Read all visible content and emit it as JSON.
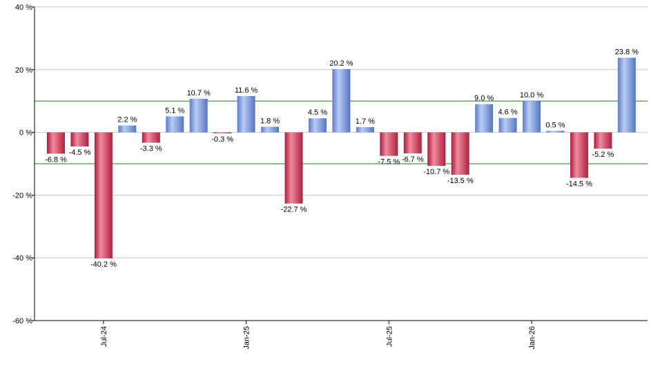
{
  "chart_data": {
    "type": "bar",
    "title": "",
    "xlabel": "",
    "ylabel": "",
    "ylim": [
      -60,
      40
    ],
    "y_ticks": [
      {
        "value": 40,
        "label": "40 %"
      },
      {
        "value": 20,
        "label": "20 %"
      },
      {
        "value": 0,
        "label": "0 %"
      },
      {
        "value": -20,
        "label": "-20 %"
      },
      {
        "value": -40,
        "label": "-40 %"
      },
      {
        "value": -60,
        "label": "-60 %"
      }
    ],
    "x_ticks": [
      {
        "index": 2,
        "label": "Jul-24"
      },
      {
        "index": 8,
        "label": "Jan-25"
      },
      {
        "index": 14,
        "label": "Jul-25"
      },
      {
        "index": 20,
        "label": "Jan-26"
      }
    ],
    "reference_lines": [
      10,
      -10
    ],
    "grid": true,
    "legend": "none",
    "values": [
      -6.8,
      -4.5,
      -40.2,
      2.2,
      -3.3,
      5.1,
      10.7,
      -0.3,
      11.6,
      1.8,
      -22.7,
      4.5,
      20.2,
      1.7,
      -7.5,
      -6.7,
      -10.7,
      -13.5,
      9.0,
      4.6,
      10.0,
      0.5,
      -14.5,
      -5.2,
      23.8
    ],
    "labels": [
      "-6.8 %",
      "-4.5 %",
      "-40.2 %",
      "2.2 %",
      "-3.3 %",
      "5.1 %",
      "10.7 %",
      "-0.3 %",
      "11.6 %",
      "1.8 %",
      "-22.7 %",
      "4.5 %",
      "20.2 %",
      "1.7 %",
      "-7.5 %",
      "-6.7 %",
      "-10.7 %",
      "-13.5 %",
      "9.0 %",
      "4.6 %",
      "10.0 %",
      "0.5 %",
      "-14.5 %",
      "-5.2 %",
      "23.8 %"
    ],
    "colors": {
      "positive": "#7f9fe0",
      "negative": "#d23a5a",
      "reference_line": "#1f7a1f",
      "grid": "#c8c8c8",
      "axis": "#000000"
    }
  }
}
